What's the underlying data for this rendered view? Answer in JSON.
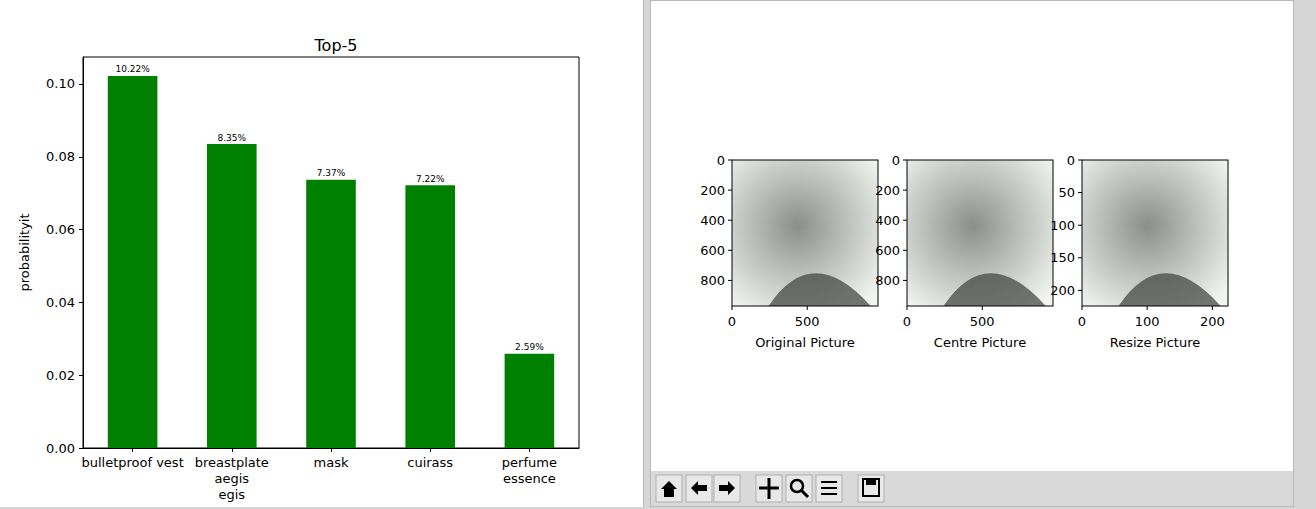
{
  "chart_data": {
    "type": "bar",
    "title": "Top-5",
    "y_label": "probabilityit",
    "categories": [
      "bulletproof vest",
      "breastplate\naegis\negis",
      "mask",
      "cuirass",
      "perfume\nessence"
    ],
    "values": [
      0.1022,
      0.0835,
      0.0737,
      0.0722,
      0.0259
    ],
    "value_labels": [
      "10.22%",
      "8.35%",
      "7.37%",
      "7.22%",
      "2.59%"
    ],
    "color": "#008000",
    "ylim": [
      0,
      0.1074
    ],
    "yticks": [
      {
        "value": 0,
        "label": "0.00"
      },
      {
        "value": 0.02,
        "label": "0.02"
      },
      {
        "value": 0.04,
        "label": "0.04"
      },
      {
        "value": 0.06,
        "label": "0.06"
      },
      {
        "value": 0.08,
        "label": "0.08"
      },
      {
        "value": 0.1,
        "label": "0.10"
      }
    ],
    "grid": false,
    "data_labels": true
  },
  "image_panels": [
    {
      "caption": "Original Picture",
      "xlim": [
        0,
        970
      ],
      "ylim": [
        970,
        0
      ],
      "xticks": [
        0,
        500
      ],
      "yticks": [
        0,
        200,
        400,
        600,
        800
      ]
    },
    {
      "caption": "Centre Picture",
      "xlim": [
        0,
        970
      ],
      "ylim": [
        970,
        0
      ],
      "xticks": [
        0,
        500
      ],
      "yticks": [
        0,
        200,
        400,
        600,
        800
      ]
    },
    {
      "caption": "Resize Picture",
      "xlim": [
        0,
        224
      ],
      "ylim": [
        224,
        0
      ],
      "xticks": [
        0,
        100,
        200
      ],
      "yticks": [
        0,
        50,
        100,
        150,
        200
      ]
    }
  ]
}
